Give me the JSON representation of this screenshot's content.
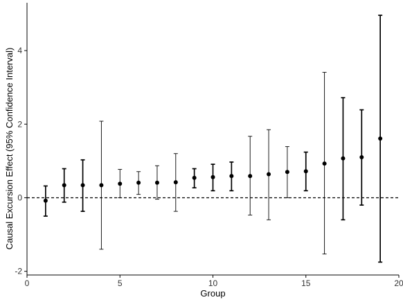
{
  "chart_data": {
    "type": "scatter",
    "title": "",
    "xlabel": "Group",
    "ylabel": "Causal Excursion Effect (95% Confidence Interval)",
    "xlim": [
      0,
      20
    ],
    "ylim": [
      -2.1,
      5.3
    ],
    "xticks": [
      0,
      5,
      10,
      15,
      20
    ],
    "yticks": [
      -2,
      0,
      2,
      4
    ],
    "grid": false,
    "legend": "none",
    "reference_line": {
      "y": 0,
      "style": "dashed"
    },
    "colors": {
      "point": "#000000",
      "errorbar": "#000000",
      "axis": "#000000"
    },
    "series": [
      {
        "x": [
          1,
          2,
          3,
          4,
          5,
          6,
          7,
          8,
          9,
          10,
          11,
          12,
          13,
          14,
          15,
          16,
          17,
          18,
          19
        ],
        "y": [
          -0.08,
          0.34,
          0.34,
          0.34,
          0.38,
          0.41,
          0.41,
          0.42,
          0.54,
          0.56,
          0.59,
          0.59,
          0.64,
          0.7,
          0.72,
          0.93,
          1.07,
          1.1,
          1.61
        ],
        "ci_low": [
          -0.5,
          -0.12,
          -0.37,
          -1.4,
          0.0,
          0.09,
          -0.04,
          -0.37,
          0.27,
          0.19,
          0.19,
          -0.47,
          -0.6,
          0.0,
          0.19,
          -1.53,
          -0.6,
          -0.2,
          -1.75
        ],
        "ci_high": [
          0.32,
          0.79,
          1.03,
          2.08,
          0.77,
          0.71,
          0.87,
          1.2,
          0.79,
          0.91,
          0.97,
          1.67,
          1.85,
          1.39,
          1.24,
          3.41,
          2.72,
          2.39,
          4.96
        ],
        "errorbar_weight": [
          2,
          2,
          2,
          1,
          1,
          1,
          1,
          1,
          2,
          2,
          2,
          1,
          1,
          1,
          2,
          1,
          2,
          2,
          2
        ]
      }
    ]
  }
}
